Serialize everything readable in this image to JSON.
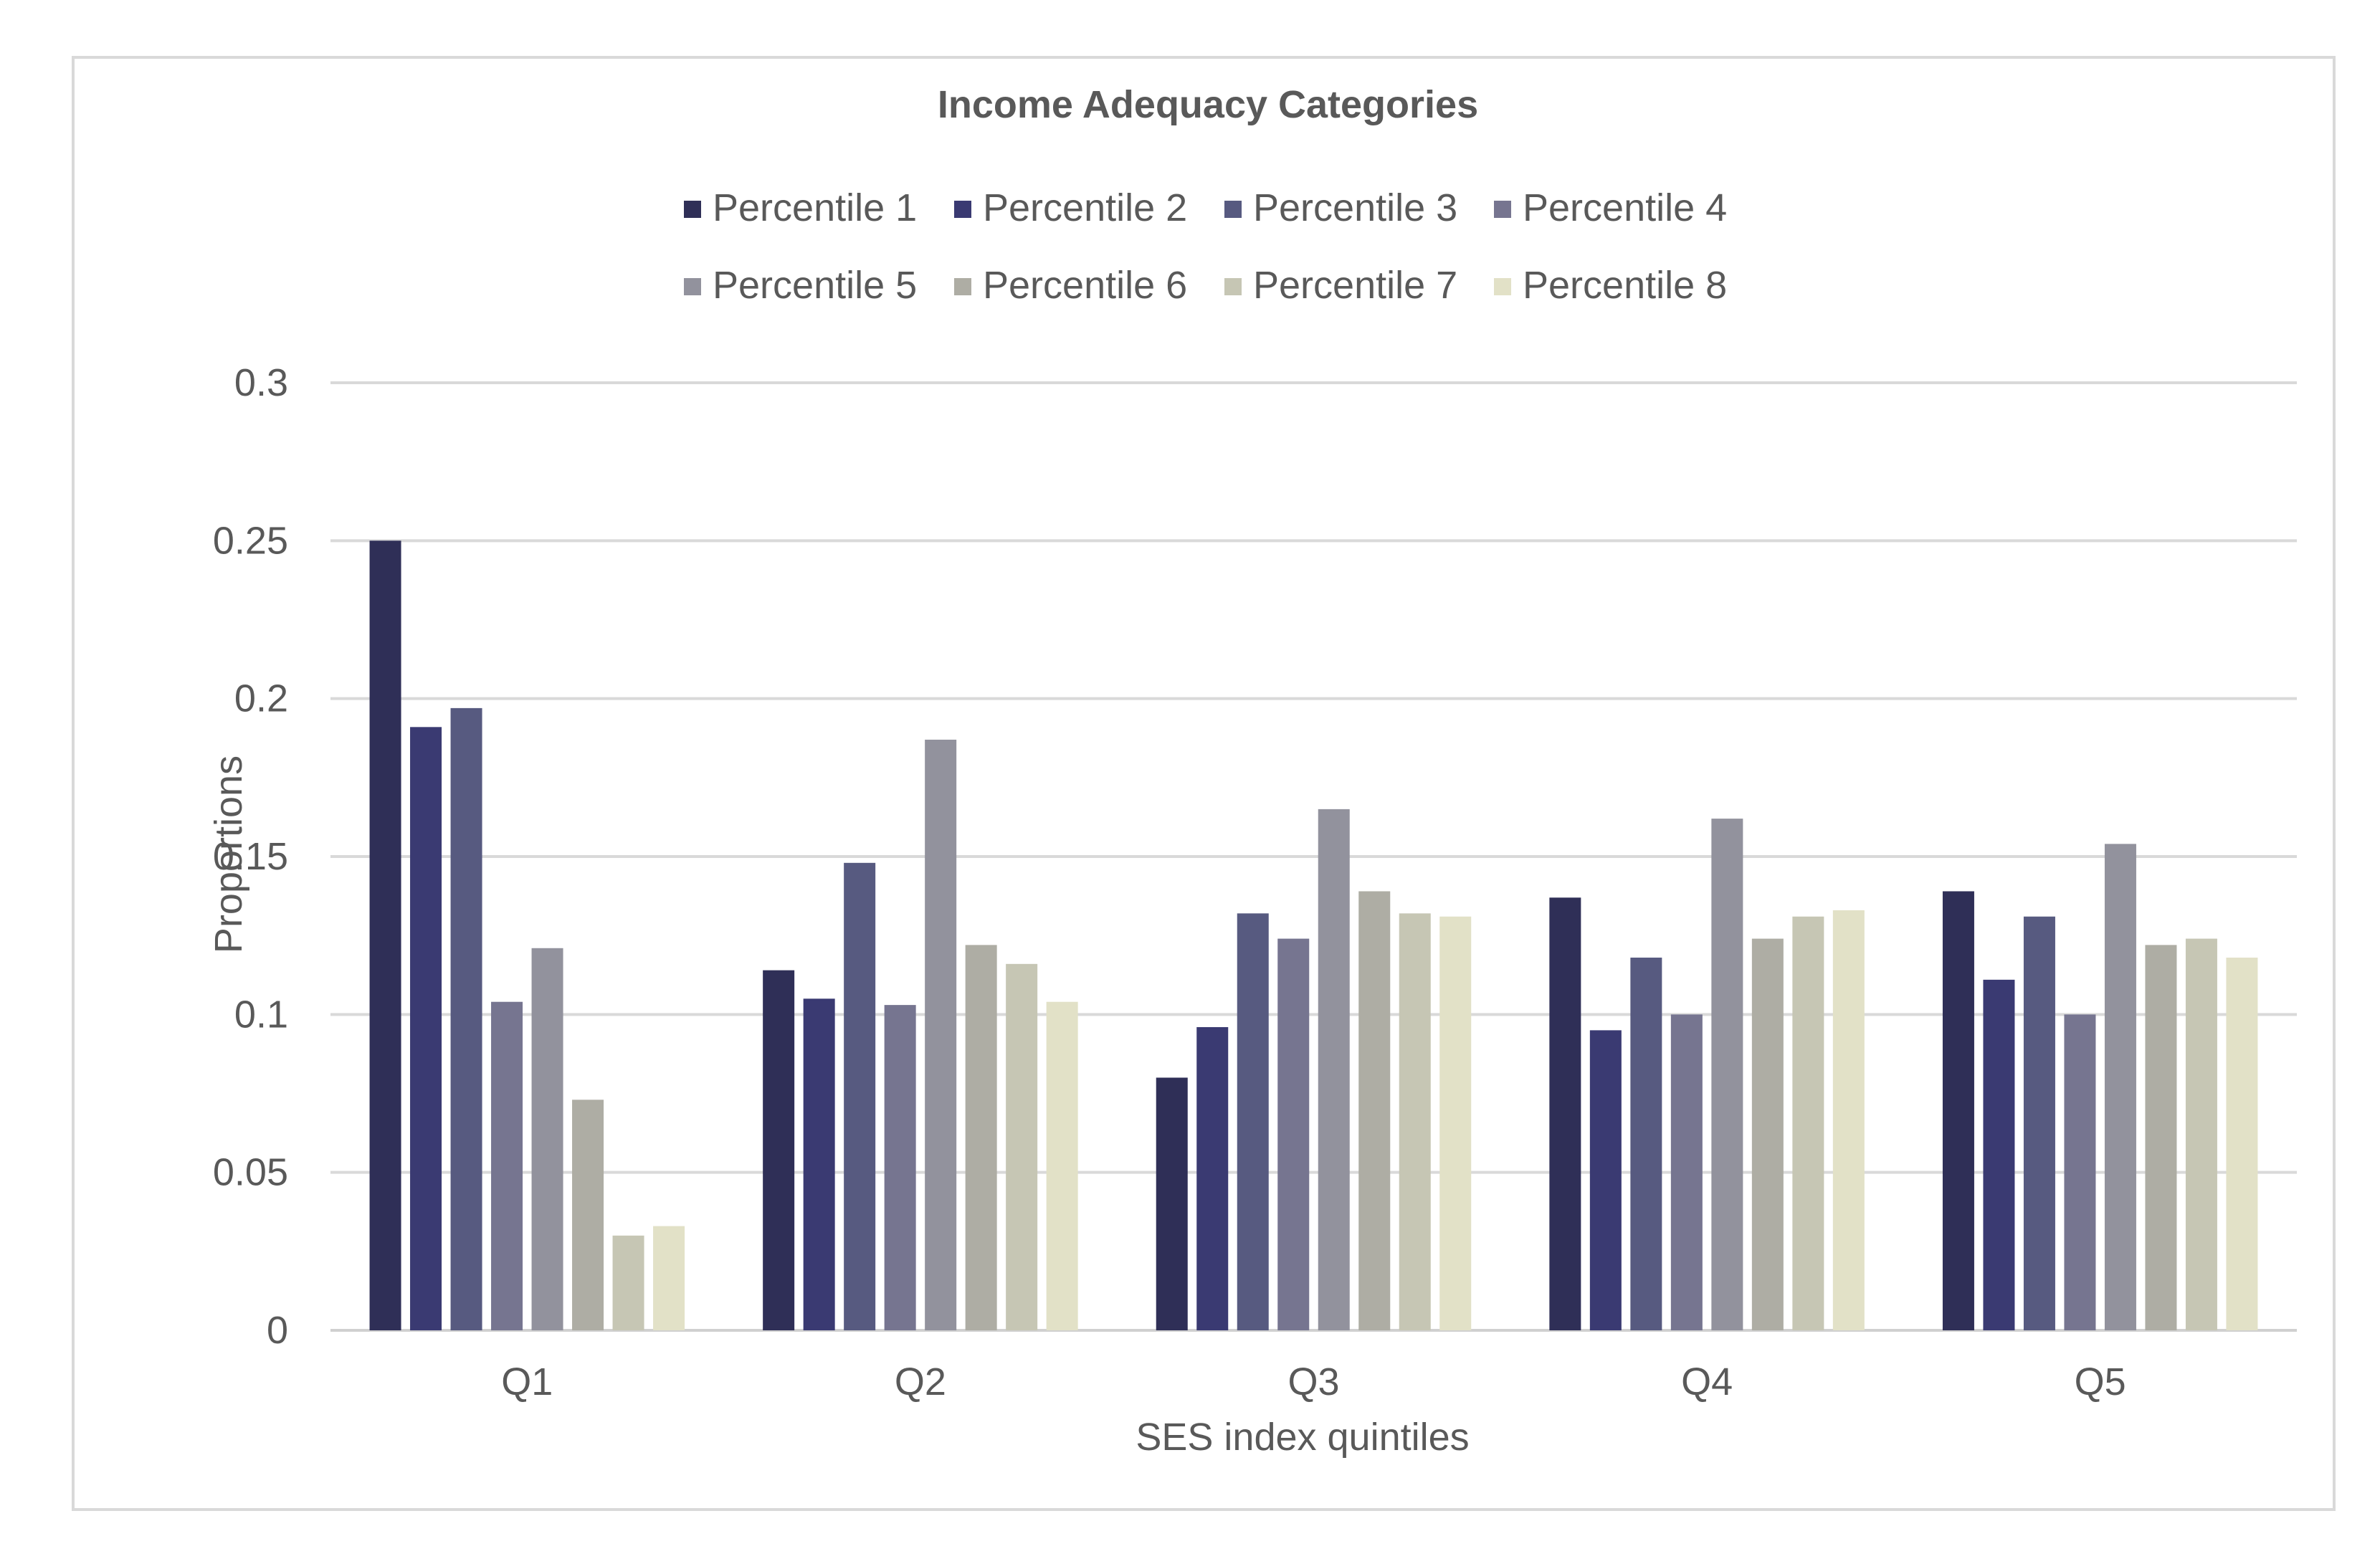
{
  "chart_data": {
    "type": "bar",
    "title": "Income Adequacy Categories",
    "xlabel": "SES index quintiles",
    "ylabel": "Proportions",
    "ylim": [
      0,
      0.3
    ],
    "yticks": [
      0,
      0.05,
      0.1,
      0.15,
      0.2,
      0.25,
      0.3
    ],
    "ytick_labels": [
      "0",
      "0.05",
      "0.1",
      "0.15",
      "0.2",
      "0.25",
      "0.3"
    ],
    "grid": true,
    "legend_position": "top",
    "categories": [
      "Q1",
      "Q2",
      "Q3",
      "Q4",
      "Q5"
    ],
    "series": [
      {
        "name": "Percentile 1",
        "color": "#2f2f57",
        "values": [
          0.25,
          0.114,
          0.08,
          0.137,
          0.139
        ]
      },
      {
        "name": "Percentile 2",
        "color": "#3a3a72",
        "values": [
          0.191,
          0.105,
          0.096,
          0.095,
          0.111
        ]
      },
      {
        "name": "Percentile 3",
        "color": "#575a80",
        "values": [
          0.197,
          0.148,
          0.132,
          0.118,
          0.131
        ]
      },
      {
        "name": "Percentile 4",
        "color": "#767590",
        "values": [
          0.104,
          0.103,
          0.124,
          0.1,
          0.1
        ]
      },
      {
        "name": "Percentile 5",
        "color": "#92929d",
        "values": [
          0.121,
          0.187,
          0.165,
          0.162,
          0.154
        ]
      },
      {
        "name": "Percentile 6",
        "color": "#aeada4",
        "values": [
          0.073,
          0.122,
          0.139,
          0.124,
          0.122
        ]
      },
      {
        "name": "Percentile 7",
        "color": "#c6c6b4",
        "values": [
          0.03,
          0.116,
          0.132,
          0.131,
          0.124
        ]
      },
      {
        "name": "Percentile 8",
        "color": "#e2e1c7",
        "values": [
          0.033,
          0.104,
          0.131,
          0.133,
          0.118
        ]
      }
    ]
  }
}
